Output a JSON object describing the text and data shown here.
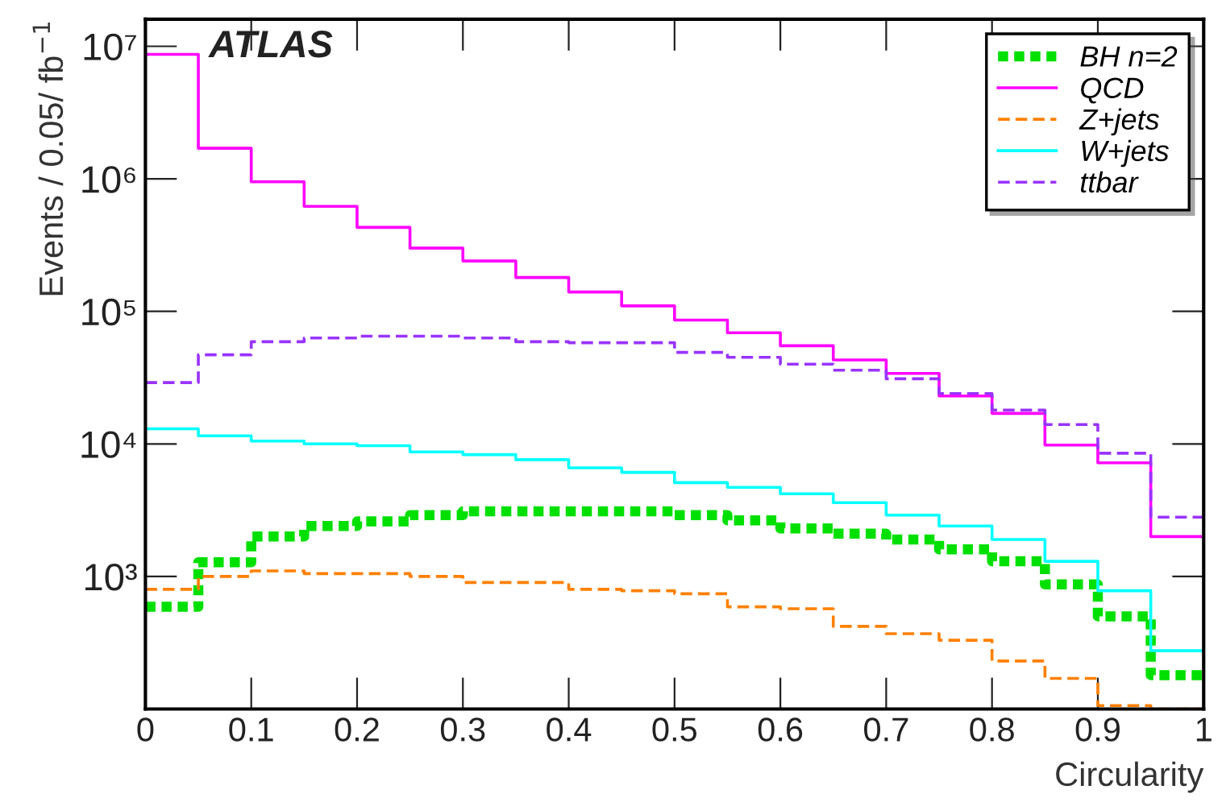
{
  "chart_data": {
    "type": "histogram",
    "xlabel": "Circularity",
    "ylabel": "Events / 0.05/ fb$^{−1}$",
    "annotations": [
      "ATLAS"
    ],
    "log": "y",
    "legend": "top right",
    "grid": false,
    "bins": [
      0,
      0.05,
      0.1,
      0.15,
      0.2,
      0.25,
      0.3,
      0.35,
      0.4,
      0.45,
      0.5,
      0.55,
      0.6,
      0.65,
      0.7,
      0.75,
      0.8,
      0.85,
      0.9,
      0.95,
      1
    ],
    "xlim": [
      0,
      1
    ],
    "xticks": [
      0,
      0.1,
      0.2,
      0.3,
      0.4,
      0.5,
      0.6,
      0.7,
      0.8,
      0.9,
      1
    ],
    "ylim": [
      100,
      16000000
    ],
    "yticks": [
      {
        "value": 1000,
        "label": "10³"
      },
      {
        "value": 10000,
        "label": "10⁴"
      },
      {
        "value": 100000,
        "label": "10⁵"
      },
      {
        "value": 1000000,
        "label": "10⁶"
      },
      {
        "value": 10000000,
        "label": "10⁷"
      }
    ],
    "series": [
      {
        "name": "BH n=2",
        "color": "#00e000",
        "line_style": "dotted",
        "values": [
          590,
          1280,
          2000,
          2400,
          2600,
          2900,
          3100,
          3100,
          3100,
          3100,
          2900,
          2650,
          2300,
          2100,
          1900,
          1600,
          1300,
          870,
          500,
          180
        ]
      },
      {
        "name": "QCD",
        "color": "#ff00ff",
        "line_style": "solid",
        "values": [
          8700000,
          1700000,
          950000,
          620000,
          430000,
          300000,
          240000,
          180000,
          140000,
          110000,
          86000,
          69000,
          55000,
          43000,
          34000,
          23000,
          17000,
          9800,
          7200,
          2000
        ]
      },
      {
        "name": "Z+jets",
        "color": "#ff8000",
        "line_style": "dashed",
        "values": [
          800,
          1000,
          1100,
          1050,
          1050,
          1000,
          900,
          900,
          800,
          780,
          740,
          590,
          570,
          420,
          370,
          330,
          230,
          170,
          106,
          100
        ]
      },
      {
        "name": "W+jets",
        "color": "#00ffff",
        "line_style": "solid",
        "values": [
          13000,
          11500,
          10500,
          10000,
          9700,
          8700,
          8300,
          7600,
          6600,
          6100,
          5100,
          4700,
          4200,
          3600,
          2900,
          2400,
          1900,
          1300,
          780,
          275
        ]
      },
      {
        "name": "ttbar",
        "color": "#9933ff",
        "line_style": "dashed",
        "values": [
          29000,
          47000,
          59000,
          63000,
          65000,
          65000,
          63000,
          59000,
          58000,
          58000,
          49000,
          45000,
          40000,
          36000,
          31000,
          24000,
          18000,
          14000,
          8500,
          2800
        ]
      }
    ]
  }
}
